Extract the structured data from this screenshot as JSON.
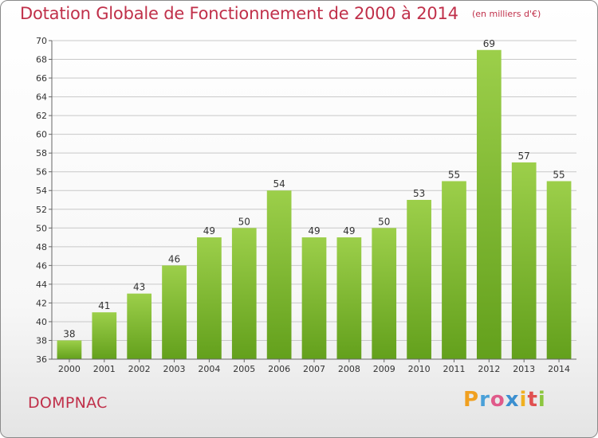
{
  "header": {
    "title": "Dotation Globale de Fonctionnement de 2000 à 2014",
    "unit": "(en milliers d'€)"
  },
  "footer": {
    "commune": "DOMPNAC",
    "logo_text": "Proxiti"
  },
  "colors": {
    "title": "#c0304a",
    "bar_top": "#9ccf4a",
    "bar_bottom": "#63a01c",
    "grid": "#c8c8c8",
    "axis": "#666666"
  },
  "chart_data": {
    "type": "bar",
    "title": "Dotation Globale de Fonctionnement de 2000 à 2014",
    "subtitle": "(en milliers d'€)",
    "categories": [
      "2000",
      "2001",
      "2002",
      "2003",
      "2004",
      "2005",
      "2006",
      "2007",
      "2008",
      "2009",
      "2010",
      "2011",
      "2012",
      "2013",
      "2014"
    ],
    "values": [
      38,
      41,
      43,
      46,
      49,
      50,
      54,
      49,
      49,
      50,
      53,
      55,
      69,
      57,
      55
    ],
    "ylim": [
      36,
      70
    ],
    "yticks": [
      36,
      38,
      40,
      42,
      44,
      46,
      48,
      50,
      52,
      54,
      56,
      58,
      60,
      62,
      64,
      66,
      68,
      70
    ],
    "grid": true,
    "data_labels": true
  }
}
